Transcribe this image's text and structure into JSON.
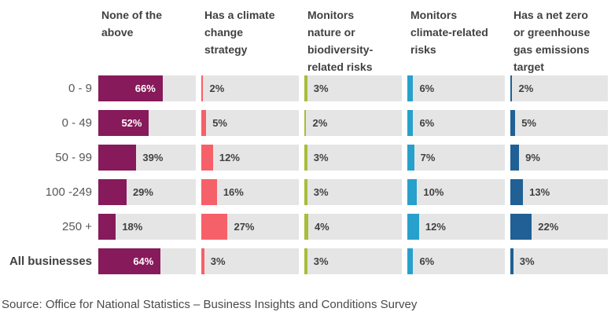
{
  "chart_data": {
    "type": "bar",
    "orientation": "horizontal",
    "categories": [
      "0 - 9",
      "0 - 49",
      "50 - 99",
      "100 -249",
      "250 +",
      "All businesses"
    ],
    "series": [
      {
        "name": "None of the above",
        "color": "#871A5B",
        "values": [
          66,
          52,
          39,
          29,
          18,
          64
        ]
      },
      {
        "name": "Has a climate change strategy",
        "color": "#F66068",
        "values": [
          2,
          5,
          12,
          16,
          27,
          3
        ]
      },
      {
        "name": "Monitors nature or biodiversity-related risks",
        "color": "#A8BD3A",
        "values": [
          3,
          2,
          3,
          3,
          4,
          3
        ]
      },
      {
        "name": "Monitors climate-related risks",
        "color": "#27A0CC",
        "values": [
          6,
          6,
          7,
          10,
          12,
          6
        ]
      },
      {
        "name": "Has a net zero or greenhouse gas emissions target",
        "color": "#206095",
        "values": [
          2,
          5,
          9,
          13,
          22,
          3
        ]
      }
    ],
    "value_suffix": "%",
    "xlim": [
      0,
      100
    ],
    "grid": false,
    "legend_position": "column-headers",
    "source": "Source: Office for National Statistics – Business Insights and Conditions Survey"
  },
  "column_headings_display": [
    "None of the\nabove",
    "Has a climate\nchange\nstrategy",
    "Monitors\nnature or\nbiodiversity-\nrelated risks",
    "Monitors\nclimate-related\nrisks",
    "Has a net zero\nor greenhouse\ngas emissions\ntarget"
  ],
  "styles": {
    "track_color": "#E5E5E6",
    "value_label_color": "#414042",
    "inside_value_label_color": "#FFFFFF",
    "heading_color": "#414042",
    "row_label_color": "#58585A"
  },
  "inside_label_threshold": 50
}
